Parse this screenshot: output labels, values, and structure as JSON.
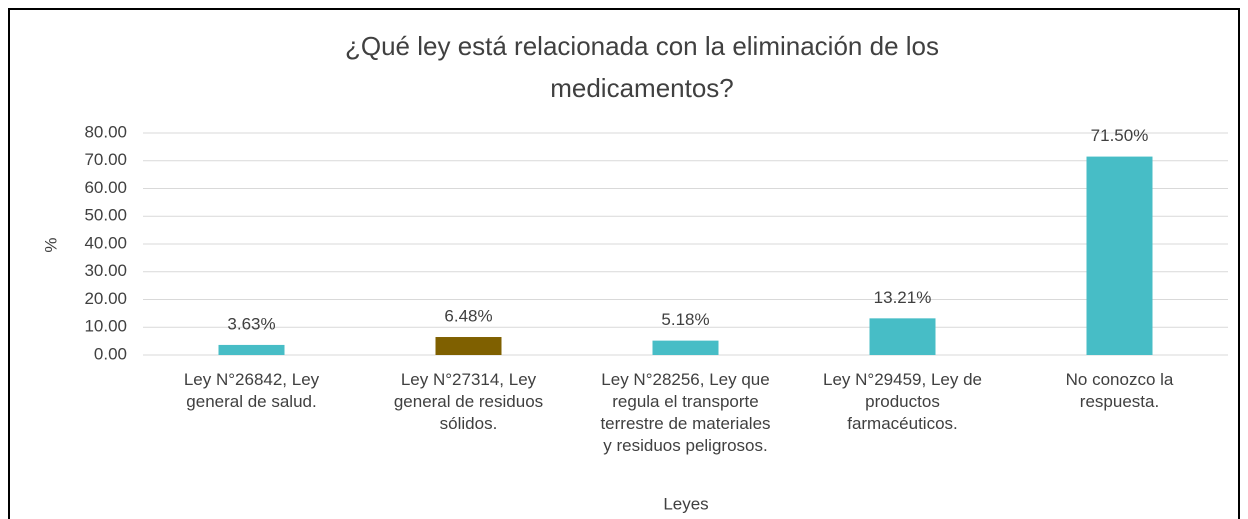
{
  "chart_data": {
    "type": "bar",
    "title": "¿Qué ley está relacionada con la eliminación de los\nmedicamentos?",
    "y_label": "%",
    "x_label": "Leyes",
    "categories": [
      "Ley N°26842, Ley\ngeneral de salud.",
      "Ley N°27314, Ley\ngeneral de residuos\nsólidos.",
      "Ley N°28256, Ley que\nregula el transporte\nterrestre de materiales\ny residuos peligrosos.",
      "Ley N°29459, Ley de\nproductos\nfarmacéuticos.",
      "No conozco la\nrespuesta."
    ],
    "values": [
      3.63,
      6.48,
      5.18,
      13.21,
      71.5
    ],
    "value_labels": [
      "3.63%",
      "6.48%",
      "5.18%",
      "13.21%",
      "71.50%"
    ],
    "colors": [
      "#47bdc6",
      "#7f6000",
      "#47bdc6",
      "#47bdc6",
      "#47bdc6"
    ],
    "ylim": [
      0,
      80
    ],
    "yticks": [
      {
        "value": 0,
        "label": "0.00"
      },
      {
        "value": 10,
        "label": "10.00"
      },
      {
        "value": 20,
        "label": "20.00"
      },
      {
        "value": 30,
        "label": "30.00"
      },
      {
        "value": 40,
        "label": "40.00"
      },
      {
        "value": 50,
        "label": "50.00"
      },
      {
        "value": 60,
        "label": "60.00"
      },
      {
        "value": 70,
        "label": "70.00"
      },
      {
        "value": 80,
        "label": "80.00"
      }
    ],
    "grid": true
  }
}
